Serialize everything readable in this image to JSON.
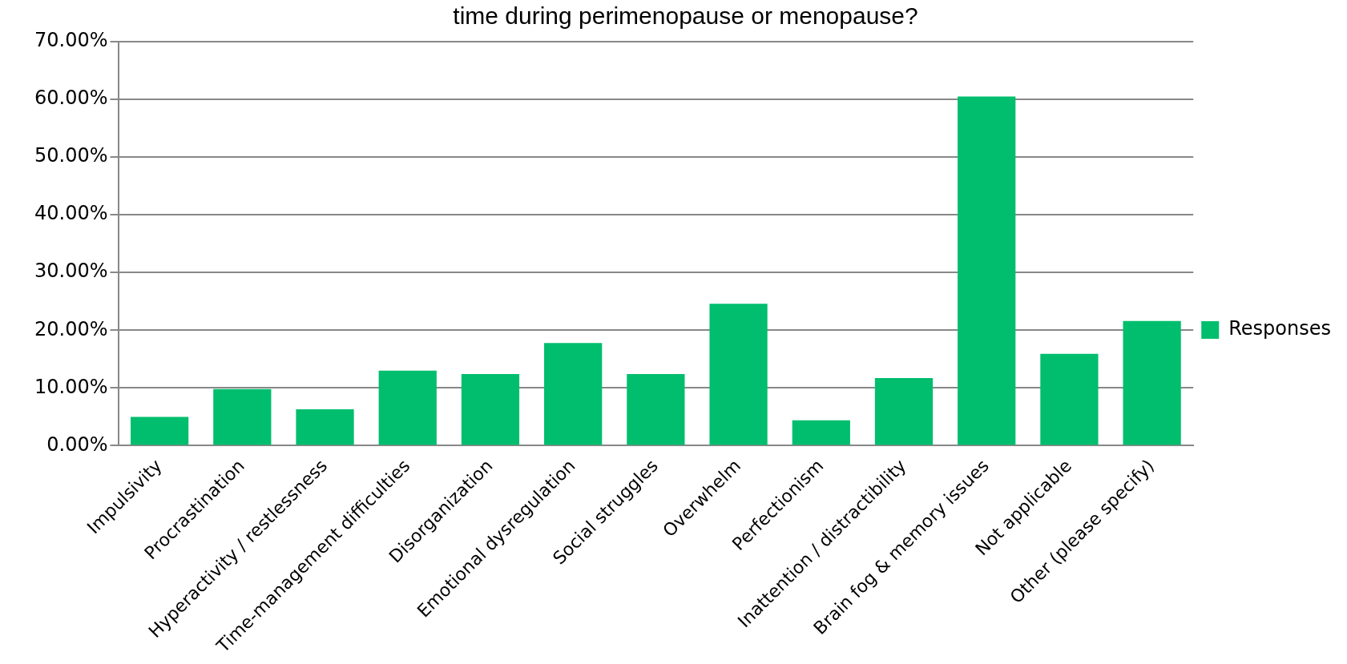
{
  "chart_data": {
    "type": "bar",
    "title": "time during perimenopause or menopause?",
    "categories": [
      "Impulsivity",
      "Procrastination",
      "Hyperactivity / restlessness",
      "Time-management difficulties",
      "Disorganization",
      "Emotional dysregulation",
      "Social struggles",
      "Overwhelm",
      "Perfectionism",
      "Inattention / distractibility",
      "Brain fog & memory issues",
      "Not applicable",
      "Other (please specify)"
    ],
    "series": [
      {
        "name": "Responses",
        "color": "#00be6e",
        "values": [
          5.0,
          9.8,
          6.3,
          13.0,
          12.4,
          17.8,
          12.4,
          24.6,
          4.4,
          11.7,
          60.5,
          15.9,
          21.6
        ]
      }
    ],
    "ylim": [
      0,
      70
    ],
    "yticks": [
      {
        "value": 0,
        "label": "0.00%"
      },
      {
        "value": 10,
        "label": "10.00%"
      },
      {
        "value": 20,
        "label": "20.00%"
      },
      {
        "value": 30,
        "label": "30.00%"
      },
      {
        "value": 40,
        "label": "40.00%"
      },
      {
        "value": 50,
        "label": "50.00%"
      },
      {
        "value": 60,
        "label": "60.00%"
      },
      {
        "value": 70,
        "label": "70.00%"
      }
    ],
    "grid": "y",
    "legend": "right"
  }
}
